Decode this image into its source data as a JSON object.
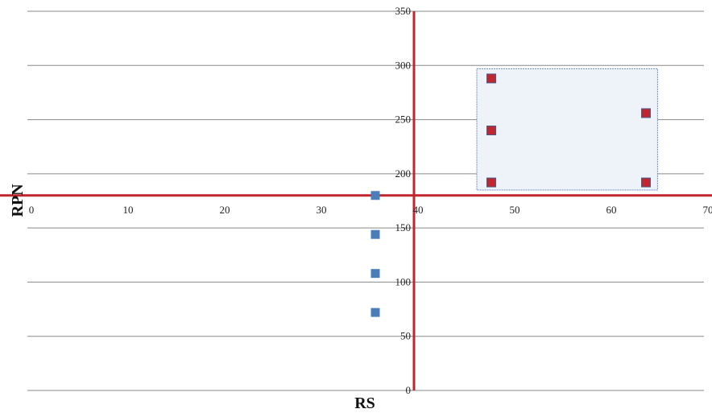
{
  "chart_data": {
    "type": "scatter",
    "xlabel": "RS",
    "ylabel": "RPN",
    "xlim": [
      0,
      70
    ],
    "ylim": [
      0,
      350
    ],
    "x_ticks": [
      "0",
      "10",
      "20",
      "30",
      "40",
      "50",
      "60",
      "70"
    ],
    "y_ticks": [
      "0",
      "50",
      "100",
      "150",
      "200",
      "250",
      "300",
      "350"
    ],
    "grid": "horizontal",
    "reference_lines": {
      "x": 40,
      "y": 180,
      "color": "#c0262d"
    },
    "highlight_region": {
      "x": [
        46.5,
        65.2
      ],
      "y": [
        185,
        297
      ],
      "fill": "#eef3fa",
      "stroke": "#6a8fc4"
    },
    "series": [
      {
        "color": "#4a7ebb",
        "marker": "square",
        "points": [
          [
            36,
            180
          ],
          [
            36,
            144
          ],
          [
            36,
            108
          ],
          [
            36,
            72
          ]
        ]
      },
      {
        "color": "#c0262d",
        "marker": "square",
        "points": [
          [
            48,
            288
          ],
          [
            48,
            240
          ],
          [
            48,
            192
          ],
          [
            64,
            256
          ],
          [
            64,
            192
          ]
        ]
      }
    ]
  }
}
